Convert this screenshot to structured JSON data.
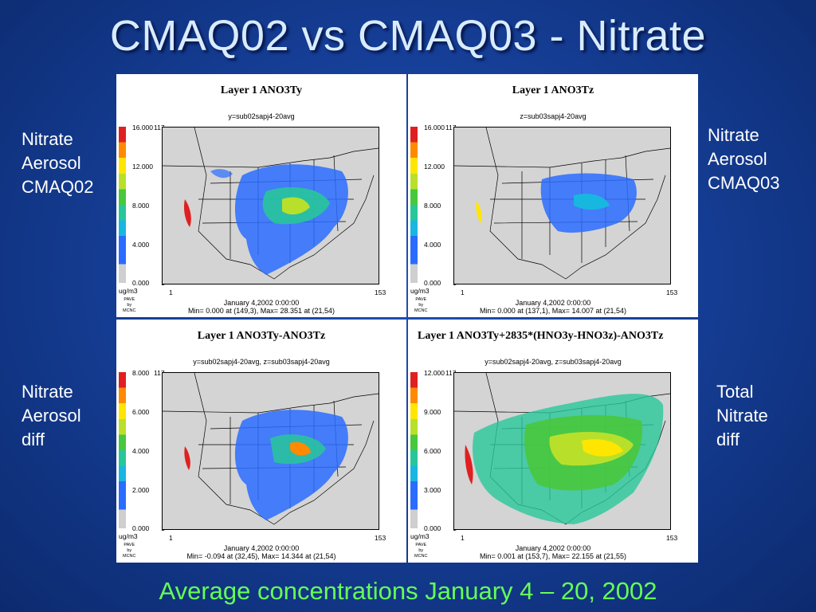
{
  "slide": {
    "title": "CMAQ02 vs CMAQ03 - Nitrate",
    "caption": "Average concentrations January 4 – 20, 2002"
  },
  "labels": {
    "top_left": [
      "Nitrate",
      "Aerosol",
      "CMAQ02"
    ],
    "top_right": [
      "Nitrate",
      "Aerosol",
      "CMAQ03"
    ],
    "bottom_left": [
      "Nitrate",
      "Aerosol",
      "diff"
    ],
    "bottom_right": [
      "Total",
      "Nitrate",
      "diff"
    ]
  },
  "common": {
    "unit": "ug/m3",
    "pave": [
      "PAVE",
      "by",
      "MCNC"
    ],
    "date": "January 4,2002 0:00:00",
    "grid_ymax": "117",
    "grid_min": "1",
    "grid_xmax": "153"
  },
  "panels": [
    {
      "title": "Layer 1  ANO3Ty",
      "subtitle": "y=sub02sapj4-20avg",
      "ticks": [
        "16.000",
        "12.000",
        "8.000",
        "4.000",
        "0.000"
      ],
      "minmax": "Min=   0.000 at (149,3), Max=   28.351 at (21,54)"
    },
    {
      "title": "Layer 1  ANO3Tz",
      "subtitle": "z=sub03sapj4-20avg",
      "ticks": [
        "16.000",
        "12.000",
        "8.000",
        "4.000",
        "0.000"
      ],
      "minmax": "Min=   0.000 at (137,1), Max=   14.007 at (21,54)"
    },
    {
      "title": "Layer 1  ANO3Ty-ANO3Tz",
      "subtitle": "y=sub02sapj4-20avg, z=sub03sapj4-20avg",
      "ticks": [
        "8.000",
        "6.000",
        "4.000",
        "2.000",
        "0.000"
      ],
      "minmax": "Min=  -0.094 at (32,45), Max=   14.344 at (21,54)"
    },
    {
      "title": "Layer 1  ANO3Ty+2835*(HNO3y-HNO3z)-ANO3Tz",
      "subtitle": "y=sub02sapj4-20avg, z=sub03sapj4-20avg",
      "ticks": [
        "12.000",
        "9.000",
        "6.000",
        "3.000",
        "0.000"
      ],
      "minmax": "Min=   0.001 at (153,7), Max=   22.155 at (21,55)"
    }
  ],
  "colors": {
    "title": "#d9ecff",
    "caption": "#66ff55",
    "background": "#163f98"
  }
}
